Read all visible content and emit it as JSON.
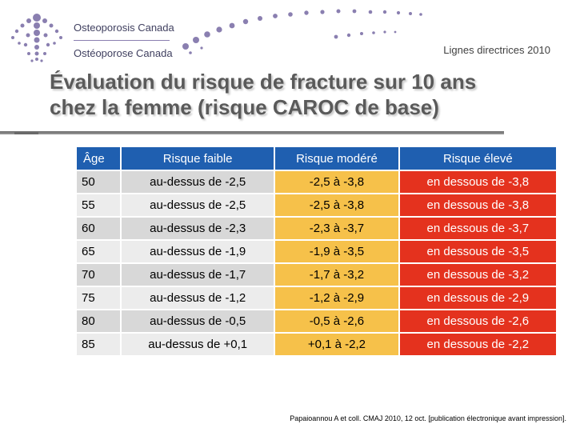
{
  "header": {
    "brand_en": "Osteoporosis Canada",
    "brand_fr": "Ostéoporose Canada",
    "subtitle": "Lignes directrices 2010"
  },
  "title": {
    "line1": "Évaluation du risque de fracture sur 10 ans",
    "line2": "chez la femme (risque CAROC de base)"
  },
  "colors": {
    "header_blue": "#1f5fb0",
    "moderate_orange": "#f6c14a",
    "high_red": "#e4321e",
    "brand_purple": "#8a7fb0"
  },
  "table": {
    "headers": [
      "Âge",
      "Risque faible",
      "Risque modéré",
      "Risque élevé"
    ],
    "rows": [
      [
        "50",
        "au-dessus de -2,5",
        "-2,5 à -3,8",
        "en dessous de -3,8"
      ],
      [
        "55",
        "au-dessus de -2,5",
        "-2,5 à -3,8",
        "en dessous de -3,8"
      ],
      [
        "60",
        "au-dessus de -2,3",
        "-2,3 à -3,7",
        "en dessous de -3,7"
      ],
      [
        "65",
        "au-dessus de -1,9",
        "-1,9 à -3,5",
        "en dessous de -3,5"
      ],
      [
        "70",
        "au-dessus de -1,7",
        "-1,7 à -3,2",
        "en dessous de -3,2"
      ],
      [
        "75",
        "au-dessus de -1,2",
        "-1,2 à -2,9",
        "en dessous de -2,9"
      ],
      [
        "80",
        "au-dessus de -0,5",
        "-0,5 à -2,6",
        "en dessous de -2,6"
      ],
      [
        "85",
        "au-dessus de +0,1",
        "+0,1 à -2,2",
        "en dessous de -2,2"
      ]
    ]
  },
  "citation": "Papaioannou A et coll. CMAJ 2010, 12 oct. [publication électronique avant impression]."
}
